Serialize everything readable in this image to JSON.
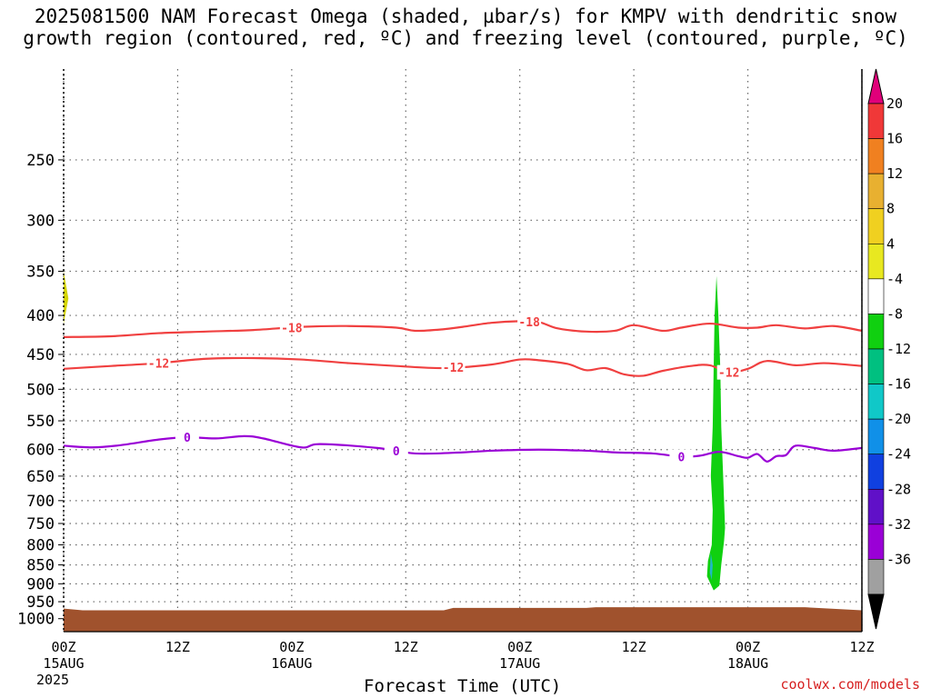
{
  "title_line1": "2025081500 NAM Forecast Omega (shaded, µbar/s) for KMPV with dendritic snow",
  "title_line2": "growth region (contoured, red, ºC) and freezing level (contoured, purple, ºC)",
  "credit": "coolwx.com/models",
  "colors": {
    "ground": "#a0522d",
    "temperature_contour": "#f04040",
    "freezing_contour": "#9a00d6",
    "omega_green": "#10d010",
    "omega_cyan": "#20b8c8",
    "grid": "#666666"
  },
  "chart_data": {
    "type": "heatmap",
    "xlabel": "Forecast Time (UTC)",
    "ylabel": "",
    "y_scale": "log",
    "y_inverted": true,
    "grid": true,
    "x_range_hours": [
      0,
      84
    ],
    "y_range_hpa": [
      1040,
      190
    ],
    "x_ticks": [
      {
        "hour": 0,
        "line1": "00Z",
        "line2": "15AUG",
        "line3": "2025"
      },
      {
        "hour": 12,
        "line1": "12Z",
        "line2": "",
        "line3": ""
      },
      {
        "hour": 24,
        "line1": "00Z",
        "line2": "16AUG",
        "line3": ""
      },
      {
        "hour": 36,
        "line1": "12Z",
        "line2": "",
        "line3": ""
      },
      {
        "hour": 48,
        "line1": "00Z",
        "line2": "17AUG",
        "line3": ""
      },
      {
        "hour": 60,
        "line1": "12Z",
        "line2": "",
        "line3": ""
      },
      {
        "hour": 72,
        "line1": "00Z",
        "line2": "18AUG",
        "line3": ""
      },
      {
        "hour": 84,
        "line1": "12Z",
        "line2": "",
        "line3": ""
      }
    ],
    "y_ticks": [
      250,
      300,
      350,
      400,
      450,
      500,
      550,
      600,
      650,
      700,
      750,
      800,
      850,
      900,
      950,
      1000
    ],
    "contours": [
      {
        "label": "-18",
        "color": "#f04040",
        "points": [
          [
            0,
            427
          ],
          [
            5,
            426
          ],
          [
            10,
            422
          ],
          [
            15,
            420
          ],
          [
            20,
            418
          ],
          [
            25,
            414
          ],
          [
            30,
            413
          ],
          [
            35,
            415
          ],
          [
            37,
            419
          ],
          [
            40,
            417
          ],
          [
            42,
            414
          ],
          [
            45,
            409
          ],
          [
            48,
            407
          ],
          [
            50,
            408
          ],
          [
            52,
            416
          ],
          [
            55,
            420
          ],
          [
            58,
            419
          ],
          [
            60,
            412
          ],
          [
            63,
            419
          ],
          [
            65,
            415
          ],
          [
            68,
            410
          ],
          [
            71,
            415
          ],
          [
            73,
            415
          ],
          [
            75,
            412
          ],
          [
            78,
            416
          ],
          [
            81,
            413
          ],
          [
            84,
            419
          ]
        ],
        "labels": [
          [
            24,
            "-18"
          ],
          [
            49,
            "-18"
          ]
        ]
      },
      {
        "label": "-12",
        "color": "#f04040",
        "points": [
          [
            0,
            470
          ],
          [
            5,
            466
          ],
          [
            10,
            462
          ],
          [
            15,
            456
          ],
          [
            20,
            455
          ],
          [
            25,
            457
          ],
          [
            30,
            462
          ],
          [
            35,
            466
          ],
          [
            40,
            469
          ],
          [
            45,
            464
          ],
          [
            48,
            457
          ],
          [
            50,
            458
          ],
          [
            53,
            463
          ],
          [
            55,
            472
          ],
          [
            57,
            469
          ],
          [
            59,
            478
          ],
          [
            61,
            480
          ],
          [
            63,
            473
          ],
          [
            66,
            466
          ],
          [
            68,
            465
          ],
          [
            70,
            475
          ],
          [
            72,
            470
          ],
          [
            74,
            459
          ],
          [
            77,
            465
          ],
          [
            80,
            462
          ],
          [
            84,
            466
          ]
        ],
        "labels": [
          [
            10,
            "-12"
          ],
          [
            41,
            "-12"
          ],
          [
            70,
            "-12"
          ]
        ]
      },
      {
        "label": "0",
        "color": "#9a00d6",
        "points": [
          [
            0,
            593
          ],
          [
            3,
            596
          ],
          [
            6,
            592
          ],
          [
            10,
            582
          ],
          [
            13,
            578
          ],
          [
            16,
            580
          ],
          [
            19,
            576
          ],
          [
            21,
            580
          ],
          [
            25,
            596
          ],
          [
            27,
            590
          ],
          [
            33,
            597
          ],
          [
            37,
            607
          ],
          [
            42,
            605
          ],
          [
            45,
            602
          ],
          [
            50,
            600
          ],
          [
            55,
            602
          ],
          [
            58,
            605
          ],
          [
            62,
            607
          ],
          [
            65,
            613
          ],
          [
            67,
            611
          ],
          [
            69,
            604
          ],
          [
            71,
            612
          ],
          [
            72,
            615
          ],
          [
            73,
            608
          ],
          [
            74,
            622
          ],
          [
            75,
            612
          ],
          [
            76,
            610
          ],
          [
            77,
            593
          ],
          [
            79,
            597
          ],
          [
            81,
            602
          ],
          [
            84,
            597
          ]
        ],
        "labels": [
          [
            13,
            "0"
          ],
          [
            35,
            "0"
          ],
          [
            65,
            "0"
          ]
        ]
      }
    ],
    "omega_features": [
      {
        "value": -6,
        "color": "#10d010",
        "outline_hpa_hours": [
          [
            68.7,
            355
          ],
          [
            68.9,
            400
          ],
          [
            69.1,
            470
          ],
          [
            69.2,
            560
          ],
          [
            69.4,
            650
          ],
          [
            69.6,
            760
          ],
          [
            69.5,
            790
          ],
          [
            69.2,
            850
          ],
          [
            69.0,
            905
          ],
          [
            68.4,
            918
          ],
          [
            67.7,
            880
          ],
          [
            67.8,
            840
          ],
          [
            68.2,
            800
          ],
          [
            68.3,
            720
          ],
          [
            68.1,
            650
          ],
          [
            68.3,
            560
          ],
          [
            68.4,
            470
          ],
          [
            68.5,
            400
          ]
        ]
      },
      {
        "value": -14,
        "color": "#20b8c8",
        "outline_hpa_hours": [
          [
            68.1,
            820
          ],
          [
            68.3,
            850
          ],
          [
            68.2,
            890
          ],
          [
            68.0,
            870
          ]
        ]
      },
      {
        "value": 5,
        "color": "#d4d400",
        "outline_hpa_hours": [
          [
            0,
            350
          ],
          [
            0.5,
            380
          ],
          [
            0,
            410
          ]
        ]
      }
    ],
    "ground_pressure_hpa": [
      [
        0,
        970
      ],
      [
        2,
        975
      ],
      [
        40,
        975
      ],
      [
        41,
        968
      ],
      [
        55,
        968
      ],
      [
        56,
        966
      ],
      [
        78,
        966
      ],
      [
        84,
        975
      ]
    ],
    "colorbar": {
      "labels": [
        "20",
        "16",
        "12",
        "8",
        "4",
        "-4",
        "-8",
        "-12",
        "-16",
        "-20",
        "-24",
        "-28",
        "-32",
        "-36"
      ],
      "colors": [
        "#e0007a",
        "#f03838",
        "#f08020",
        "#e8b030",
        "#f0d020",
        "#e8e820",
        "#ffffff",
        "#10d010",
        "#00c080",
        "#10c8c8",
        "#1090e8",
        "#1040e0",
        "#6010c8",
        "#9a00d6",
        "#a0a0a0",
        "#000000"
      ]
    }
  }
}
